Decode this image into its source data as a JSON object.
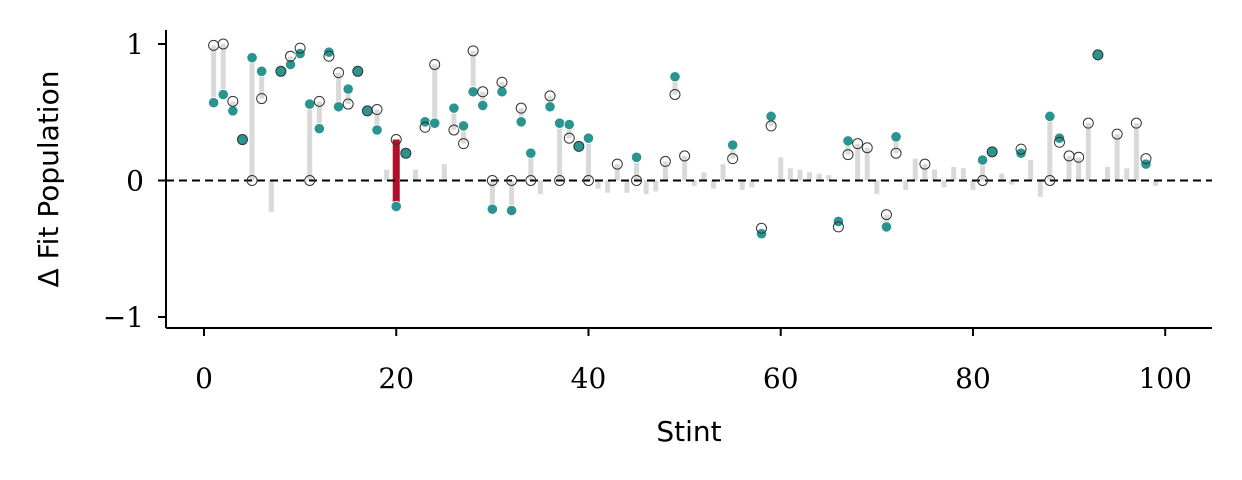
{
  "chart_data": {
    "type": "scatter",
    "xlabel": "Stint",
    "ylabel": "Δ Fit Population",
    "xlim": [
      -4,
      105
    ],
    "ylim": [
      -1.1,
      1.1
    ],
    "xticks": [
      0,
      20,
      40,
      60,
      80,
      100
    ],
    "xtick_labels": [
      "0",
      "20",
      "40",
      "60",
      "80",
      "100"
    ],
    "yticks": [
      1,
      0,
      -1
    ],
    "ytick_labels": [
      "1",
      "0",
      "−1"
    ],
    "reference_line": 0,
    "highlight_stint": 20,
    "colors": {
      "filled": "#2a9490",
      "open_stroke": "#333333",
      "segment": "#d9d9d9",
      "highlight": "#b0102b",
      "axis": "#000000"
    },
    "marked_stints": [
      {
        "x": 1,
        "filled": 0.57,
        "open": 0.99
      },
      {
        "x": 2,
        "filled": 0.63,
        "open": 1.0
      },
      {
        "x": 3,
        "filled": 0.51,
        "open": 0.58
      },
      {
        "x": 4,
        "filled": 0.3,
        "open": 0.3
      },
      {
        "x": 5,
        "filled": 0.9,
        "open": 0.0
      },
      {
        "x": 6,
        "filled": 0.8,
        "open": 0.6
      },
      {
        "x": 8,
        "filled": 0.8,
        "open": 0.8
      },
      {
        "x": 9,
        "filled": 0.85,
        "open": 0.91
      },
      {
        "x": 10,
        "filled": 0.93,
        "open": 0.97
      },
      {
        "x": 11,
        "filled": 0.56,
        "open": 0.0
      },
      {
        "x": 12,
        "filled": 0.38,
        "open": 0.58
      },
      {
        "x": 13,
        "filled": 0.94,
        "open": 0.91
      },
      {
        "x": 14,
        "filled": 0.54,
        "open": 0.79
      },
      {
        "x": 15,
        "filled": 0.67,
        "open": 0.56
      },
      {
        "x": 16,
        "filled": 0.8,
        "open": 0.8
      },
      {
        "x": 17,
        "filled": 0.51,
        "open": 0.51
      },
      {
        "x": 18,
        "filled": 0.37,
        "open": 0.52
      },
      {
        "x": 20,
        "filled": -0.19,
        "open": 0.3
      },
      {
        "x": 21,
        "filled": 0.2,
        "open": 0.2
      },
      {
        "x": 23,
        "filled": 0.43,
        "open": 0.39
      },
      {
        "x": 24,
        "filled": 0.42,
        "open": 0.85
      },
      {
        "x": 26,
        "filled": 0.53,
        "open": 0.37
      },
      {
        "x": 27,
        "filled": 0.4,
        "open": 0.27
      },
      {
        "x": 28,
        "filled": 0.65,
        "open": 0.95
      },
      {
        "x": 29,
        "filled": 0.55,
        "open": 0.65
      },
      {
        "x": 30,
        "filled": -0.21,
        "open": 0.0
      },
      {
        "x": 31,
        "filled": 0.65,
        "open": 0.72
      },
      {
        "x": 32,
        "filled": -0.22,
        "open": 0.0
      },
      {
        "x": 33,
        "filled": 0.43,
        "open": 0.53
      },
      {
        "x": 34,
        "filled": 0.2,
        "open": 0.0
      },
      {
        "x": 36,
        "filled": 0.54,
        "open": 0.62
      },
      {
        "x": 37,
        "filled": 0.42,
        "open": 0.0
      },
      {
        "x": 38,
        "filled": 0.41,
        "open": 0.31
      },
      {
        "x": 39,
        "filled": 0.25,
        "open": 0.25
      },
      {
        "x": 40,
        "filled": 0.31,
        "open": 0.0
      },
      {
        "x": 43,
        "filled": null,
        "open": 0.12
      },
      {
        "x": 45,
        "filled": 0.17,
        "open": 0.0
      },
      {
        "x": 48,
        "filled": null,
        "open": 0.14
      },
      {
        "x": 49,
        "filled": 0.76,
        "open": 0.63
      },
      {
        "x": 50,
        "filled": null,
        "open": 0.18
      },
      {
        "x": 55,
        "filled": 0.26,
        "open": 0.16
      },
      {
        "x": 58,
        "filled": -0.39,
        "open": -0.35
      },
      {
        "x": 59,
        "filled": 0.47,
        "open": 0.4
      },
      {
        "x": 66,
        "filled": -0.3,
        "open": -0.34
      },
      {
        "x": 67,
        "filled": 0.29,
        "open": 0.19
      },
      {
        "x": 68,
        "filled": null,
        "open": 0.27
      },
      {
        "x": 69,
        "filled": null,
        "open": 0.24
      },
      {
        "x": 71,
        "filled": -0.34,
        "open": -0.25
      },
      {
        "x": 72,
        "filled": 0.32,
        "open": 0.2
      },
      {
        "x": 75,
        "filled": null,
        "open": 0.12
      },
      {
        "x": 81,
        "filled": 0.15,
        "open": 0.0
      },
      {
        "x": 82,
        "filled": 0.21,
        "open": 0.21
      },
      {
        "x": 85,
        "filled": 0.2,
        "open": 0.23
      },
      {
        "x": 88,
        "filled": 0.47,
        "open": 0.0
      },
      {
        "x": 89,
        "filled": 0.31,
        "open": 0.28
      },
      {
        "x": 90,
        "filled": null,
        "open": 0.18
      },
      {
        "x": 91,
        "filled": null,
        "open": 0.17
      },
      {
        "x": 92,
        "filled": null,
        "open": 0.42
      },
      {
        "x": 93,
        "filled": 0.92,
        "open": 0.92
      },
      {
        "x": 95,
        "filled": null,
        "open": 0.34
      },
      {
        "x": 97,
        "filled": null,
        "open": 0.42
      },
      {
        "x": 98,
        "filled": 0.12,
        "open": 0.16
      }
    ],
    "unmarked_stints": [
      {
        "x": 7,
        "value": -0.23
      },
      {
        "x": 19,
        "value": 0.08
      },
      {
        "x": 22,
        "value": 0.08
      },
      {
        "x": 25,
        "value": 0.12
      },
      {
        "x": 35,
        "value": -0.1
      },
      {
        "x": 41,
        "value": -0.06
      },
      {
        "x": 42,
        "value": -0.09
      },
      {
        "x": 44,
        "value": -0.09
      },
      {
        "x": 46,
        "value": -0.1
      },
      {
        "x": 47,
        "value": -0.08
      },
      {
        "x": 51,
        "value": -0.04
      },
      {
        "x": 52,
        "value": 0.06
      },
      {
        "x": 53,
        "value": -0.06
      },
      {
        "x": 54,
        "value": 0.12
      },
      {
        "x": 56,
        "value": -0.07
      },
      {
        "x": 57,
        "value": -0.05
      },
      {
        "x": 60,
        "value": 0.17
      },
      {
        "x": 61,
        "value": 0.09
      },
      {
        "x": 62,
        "value": 0.08
      },
      {
        "x": 63,
        "value": 0.06
      },
      {
        "x": 64,
        "value": 0.05
      },
      {
        "x": 65,
        "value": 0.04
      },
      {
        "x": 70,
        "value": -0.1
      },
      {
        "x": 73,
        "value": -0.07
      },
      {
        "x": 74,
        "value": 0.16
      },
      {
        "x": 76,
        "value": 0.08
      },
      {
        "x": 77,
        "value": -0.05
      },
      {
        "x": 78,
        "value": 0.1
      },
      {
        "x": 79,
        "value": 0.09
      },
      {
        "x": 80,
        "value": -0.07
      },
      {
        "x": 83,
        "value": 0.05
      },
      {
        "x": 84,
        "value": -0.03
      },
      {
        "x": 86,
        "value": 0.15
      },
      {
        "x": 87,
        "value": -0.12
      },
      {
        "x": 94,
        "value": 0.1
      },
      {
        "x": 96,
        "value": 0.09
      },
      {
        "x": 99,
        "value": -0.04
      }
    ]
  }
}
